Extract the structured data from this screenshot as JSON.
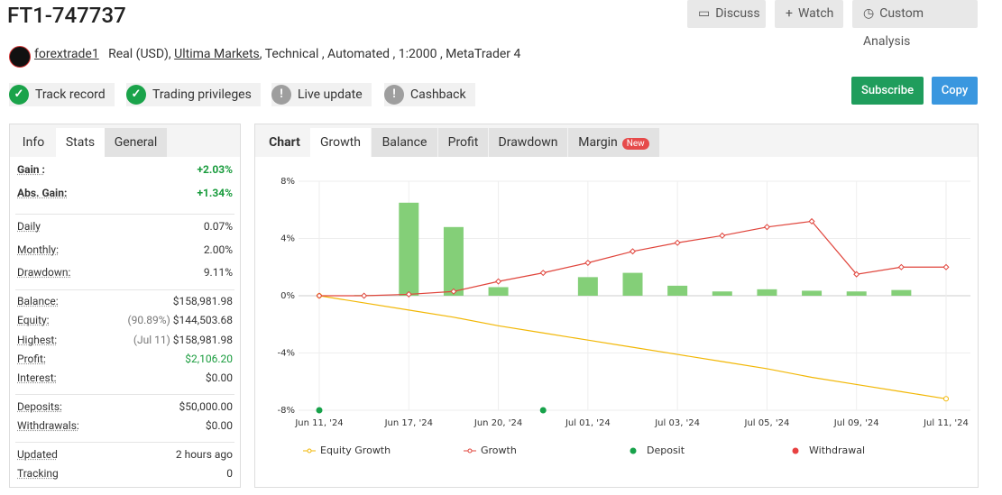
{
  "header": {
    "title": "FT1-747737",
    "buttons": [
      "Discuss",
      "Watch",
      "Custom Analysis"
    ]
  },
  "account": {
    "user": "forextrade1",
    "type": "Real (USD),",
    "broker": "Ultima Markets",
    "details": ", Technical , Automated , 1:2000 , MetaTrader 4"
  },
  "badges": [
    {
      "label": "Track record",
      "color": "#1aa34a"
    },
    {
      "label": "Trading privileges",
      "color": "#1aa34a"
    },
    {
      "label": "Live update",
      "color": "#9e9e9e"
    },
    {
      "label": "Cashback",
      "color": "#9e9e9e"
    }
  ],
  "actions": [
    {
      "label": "Subscribe",
      "color": "#1f9d5c"
    },
    {
      "label": "Copy",
      "color": "#3a97df"
    }
  ],
  "stats_tabs": [
    "Info",
    "Stats",
    "General"
  ],
  "stats": [
    [
      {
        "label": "Gain :",
        "value": "+2.03%",
        "color": "#1a9c3e"
      },
      {
        "label": "Abs. Gain:",
        "value": "+1.34%",
        "color": "#1a9c3e"
      }
    ],
    [
      {
        "label": "Daily",
        "value": "0.07%"
      },
      {
        "label": "Monthly:",
        "value": "2.00%"
      },
      {
        "label": "Drawdown:",
        "value": "9.11%"
      }
    ],
    [
      {
        "label": "Balance:",
        "value": "$158,981.98"
      },
      {
        "label": "Equity:",
        "note": "(90.89%)",
        "value": "$144,503.68"
      },
      {
        "label": "Highest:",
        "note": "(Jul 11)",
        "value": "$158,981.98"
      },
      {
        "label": "Profit:",
        "value": "$2,106.20",
        "color": "#1a9c3e"
      },
      {
        "label": "Interest:",
        "value": "$0.00"
      }
    ],
    [
      {
        "label": "Deposits:",
        "value": "$50,000.00"
      },
      {
        "label": "Withdrawals:",
        "value": "$0.00"
      }
    ],
    [
      {
        "label": "Updated",
        "value": "2 hours ago"
      },
      {
        "label": "Tracking",
        "value": "0"
      }
    ]
  ],
  "chart_tabs": [
    "Chart",
    "Growth",
    "Balance",
    "Profit",
    "Drawdown",
    "Margin"
  ],
  "new_badge": "New",
  "chart_data": {
    "type": "line",
    "categories": [
      "Jun 11, '24",
      null,
      "Jun 17, '24",
      null,
      "Jun 20, '24",
      null,
      "Jul 01, '24",
      null,
      "Jul 03, '24",
      null,
      "Jul 05, '24",
      null,
      "Jul 09, '24",
      null,
      "Jul 11, '24"
    ],
    "ylim": [
      -8,
      8
    ],
    "yticks": [
      {
        "value": 8,
        "label": "8%"
      },
      {
        "value": 4,
        "label": "4%"
      },
      {
        "value": 0,
        "label": "0%"
      },
      {
        "value": -4,
        "label": "-4%"
      },
      {
        "value": -8,
        "label": "-8%"
      }
    ],
    "grid": true,
    "series": [
      {
        "kind": "bar",
        "color": "#84cf78",
        "values": [
          null,
          0.05,
          6.5,
          4.8,
          0.6,
          null,
          1.3,
          1.6,
          0.7,
          0.3,
          0.45,
          0.35,
          0.3,
          0.4,
          null
        ]
      },
      {
        "name": "Equity Growth",
        "kind": "line",
        "color": "#f2b705",
        "values": [
          0,
          -0.5,
          -1.0,
          -1.5,
          -2.1,
          -2.6,
          -3.1,
          -3.6,
          -4.1,
          -4.6,
          -5.1,
          -5.7,
          -6.2,
          -6.7,
          -7.2
        ]
      },
      {
        "name": "Growth",
        "kind": "line",
        "color": "#e0453c",
        "values": [
          0,
          0,
          0.1,
          0.3,
          1.0,
          1.6,
          2.3,
          3.1,
          3.7,
          4.2,
          4.8,
          5.2,
          1.5,
          2.0,
          2.0
        ]
      },
      {
        "name": "Deposit",
        "kind": "dot",
        "color": "#17a24a",
        "values": [
          -8,
          null,
          null,
          null,
          null,
          -8,
          null,
          null,
          null,
          null,
          null,
          null,
          null,
          null,
          null
        ]
      },
      {
        "name": "Withdrawal",
        "kind": "dot",
        "color": "#e84141",
        "values": [
          null,
          null,
          null,
          null,
          null,
          null,
          null,
          null,
          null,
          null,
          null,
          null,
          null,
          null,
          null
        ]
      }
    ]
  }
}
